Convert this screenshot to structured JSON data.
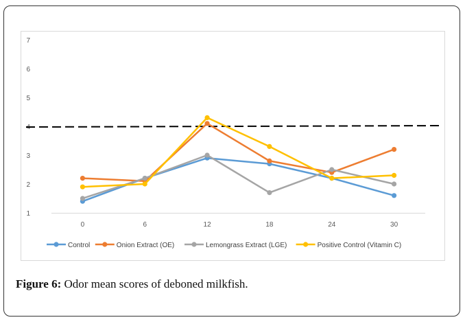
{
  "caption": {
    "label": "Figure 6:",
    "text": " Odor mean scores of deboned milkfish."
  },
  "chart_data": {
    "type": "line",
    "title": "",
    "xlabel": "",
    "ylabel": "",
    "categories": [
      "0",
      "6",
      "12",
      "18",
      "24",
      "30"
    ],
    "ylim": [
      1,
      7
    ],
    "yticks": [
      "1",
      "2",
      "3",
      "4",
      "5",
      "6",
      "7"
    ],
    "grid": false,
    "legend_position": "bottom",
    "reference_line": {
      "y": 4,
      "style": "dashed",
      "color": "#000000"
    },
    "series": [
      {
        "name": "Control",
        "color": "#5B9BD5",
        "values": [
          1.4,
          2.2,
          2.9,
          2.7,
          2.2,
          1.6
        ]
      },
      {
        "name": "Onion Extract (OE)",
        "color": "#ED7D31",
        "values": [
          2.2,
          2.1,
          4.1,
          2.8,
          2.4,
          3.2
        ]
      },
      {
        "name": "Lemongrass Extract (LGE)",
        "color": "#A5A5A5",
        "values": [
          1.5,
          2.2,
          3.0,
          1.7,
          2.5,
          2.0
        ]
      },
      {
        "name": "Positive Control (Vitamin C)",
        "color": "#FFC000",
        "values": [
          1.9,
          2.0,
          4.3,
          3.3,
          2.2,
          2.3
        ]
      }
    ]
  }
}
